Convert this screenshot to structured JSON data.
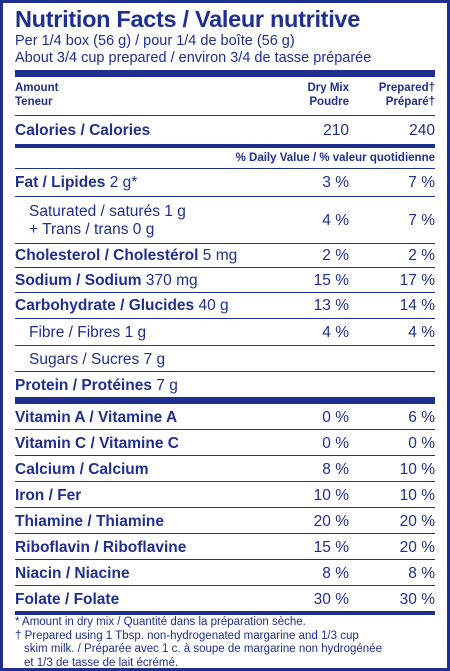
{
  "title": "Nutrition Facts / Valeur nutritive",
  "serving_line_1": "Per 1/4 box (56 g) / pour 1/4 de boîte (56 g)",
  "serving_line_2": "About 3/4 cup prepared / environ 3/4 de tasse préparée",
  "header": {
    "amount": "Amount",
    "teneur": "Teneur",
    "col1_line1": "Dry Mix",
    "col1_line2": "Poudre",
    "col2_line1": "Prepared†",
    "col2_line2": "Préparé†"
  },
  "calories": {
    "label": "Calories / Calories",
    "dry": "210",
    "prepared": "240"
  },
  "daily_value_label": "% Daily Value / % valeur quotidienne",
  "nutrients": [
    {
      "label": "Fat / Lipides",
      "amount": "2 g*",
      "dry": "3 %",
      "prepared": "7 %"
    },
    {
      "label": "Saturated / saturés 1 g",
      "label2": "+ Trans / trans 0 g",
      "dry": "4 %",
      "prepared": "7 %"
    },
    {
      "label": "Cholesterol / Cholestérol",
      "amount": "5 mg",
      "dry": "2 %",
      "prepared": "2 %"
    },
    {
      "label": "Sodium / Sodium",
      "amount": "370 mg",
      "dry": "15 %",
      "prepared": "17 %"
    },
    {
      "label": "Carbohydrate / Glucides",
      "amount": "40 g",
      "dry": "13 %",
      "prepared": "14 %"
    },
    {
      "label": "Fibre / Fibres 1 g",
      "dry": "4 %",
      "prepared": "4 %"
    },
    {
      "label": "Sugars / Sucres 7 g"
    },
    {
      "label": "Protein / Protéines",
      "amount": "7 g"
    }
  ],
  "vitamins": [
    {
      "label": "Vitamin A / Vitamine A",
      "dry": "0 %",
      "prepared": "6 %"
    },
    {
      "label": "Vitamin C / Vitamine C",
      "dry": "0 %",
      "prepared": "0 %"
    },
    {
      "label": "Calcium / Calcium",
      "dry": "8 %",
      "prepared": "10 %"
    },
    {
      "label": "Iron / Fer",
      "dry": "10 %",
      "prepared": "10 %"
    },
    {
      "label": "Thiamine / Thiamine",
      "dry": "20 %",
      "prepared": "20 %"
    },
    {
      "label": "Riboflavin / Riboflavine",
      "dry": "15 %",
      "prepared": "20 %"
    },
    {
      "label": "Niacin / Niacine",
      "dry": "8 %",
      "prepared": "8 %"
    },
    {
      "label": "Folate / Folate",
      "dry": "30 %",
      "prepared": "30 %"
    }
  ],
  "footnote_1": "* Amount in dry mix / Quantité dans la préparation sèche.",
  "footnote_2_line1": "† Prepared using 1 Tbsp. non-hydrogenated margarine and 1/3 cup",
  "footnote_2_line2": "skim milk. / Préparée avec 1 c. à soupe de margarine non hydrogénée",
  "footnote_2_line3": "et 1/3 de tasse de lait écrémé."
}
